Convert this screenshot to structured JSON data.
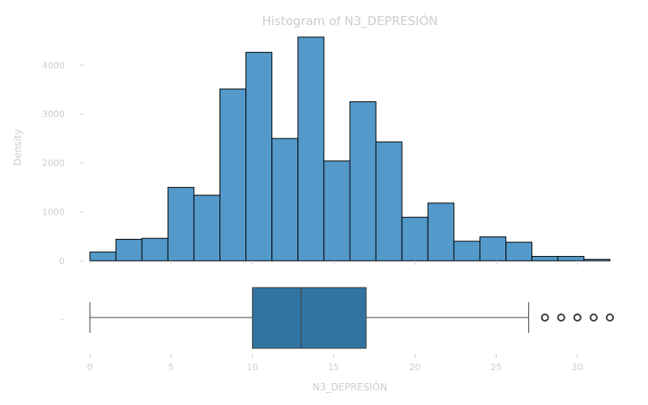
{
  "chart_data": {
    "type": "bar",
    "title": "Histogram of N3_DEPRESIÓN",
    "histogram": {
      "xlabel": "",
      "ylabel": "Density",
      "ylim": [
        0,
        4700
      ],
      "yticks": [
        "0",
        "1000",
        "2000",
        "3000",
        "4000"
      ],
      "bin_edges": [
        0,
        1.6,
        3.2,
        4.8,
        6.4,
        8.0,
        9.6,
        11.2,
        12.8,
        14.4,
        16.0,
        17.6,
        19.2,
        20.8,
        22.4,
        24.0,
        25.6,
        27.2,
        28.8,
        30.4,
        32.0
      ],
      "values": [
        180,
        440,
        460,
        1500,
        1340,
        3510,
        4260,
        2500,
        4570,
        2040,
        3250,
        2430,
        890,
        1180,
        400,
        490,
        380,
        90,
        90,
        30
      ]
    },
    "boxplot": {
      "xlabel": "N3_DEPRESIÓN",
      "ylabel": "",
      "ytick": "–",
      "whisker_low": 0,
      "q1": 10,
      "median": 13,
      "q3": 17,
      "whisker_high": 27,
      "outliers": [
        28,
        29,
        30,
        31,
        32
      ]
    },
    "xlim": [
      0,
      32
    ],
    "xticks": [
      "0",
      "5",
      "10",
      "15",
      "20",
      "25",
      "30"
    ],
    "colors": {
      "bar_fill": "#5399c9",
      "bar_edge": "#000000",
      "box_fill": "#3274a1",
      "line": "#3d3d3d",
      "text": "#cccccc"
    }
  }
}
